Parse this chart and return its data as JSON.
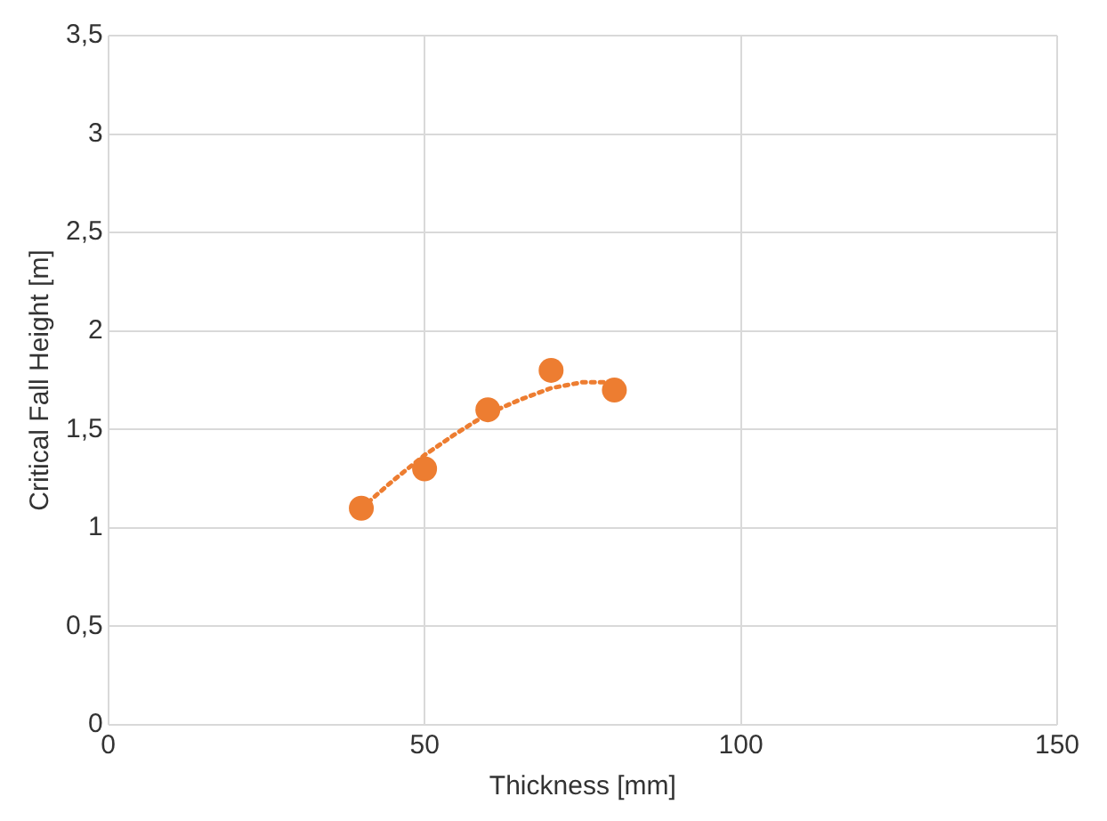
{
  "chart_data": {
    "type": "scatter",
    "xlabel": "Thickness [mm]",
    "ylabel": "Critical Fall Height [m]",
    "xlim": [
      0,
      150
    ],
    "xticks": [
      0,
      50,
      100,
      150
    ],
    "ylim": [
      0,
      3.5
    ],
    "yticks": [
      0,
      {
        "value": 0.5,
        "label": "0,5"
      },
      1,
      {
        "value": 1.5,
        "label": "1,5"
      },
      2,
      {
        "value": 2.5,
        "label": "2,5"
      },
      3,
      {
        "value": 3.5,
        "label": "3,5"
      }
    ],
    "grid": true,
    "legend": false,
    "series": [
      {
        "type": "scatter",
        "color": "#ed7d31",
        "marker": "circle",
        "x": [
          40,
          50,
          60,
          70,
          80
        ],
        "values": [
          1.1,
          1.3,
          1.6,
          1.8,
          1.7
        ]
      },
      {
        "type": "line",
        "color": "#ed7d31",
        "marker": "none",
        "line_style": "dotted",
        "x": [
          40,
          45,
          50,
          55,
          60,
          65,
          70,
          75,
          80
        ],
        "values": [
          1.1,
          1.24,
          1.37,
          1.48,
          1.58,
          1.65,
          1.71,
          1.74,
          1.74
        ]
      }
    ]
  }
}
